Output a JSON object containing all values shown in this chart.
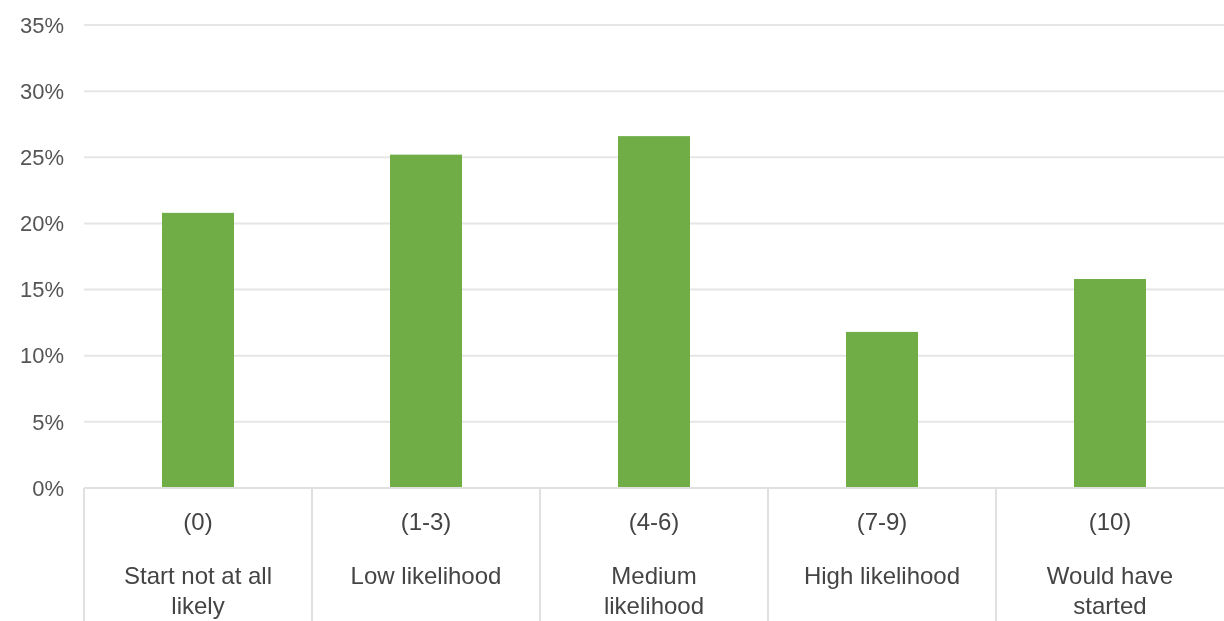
{
  "chart_data": {
    "type": "bar",
    "categories": [
      "(0)\nStart not at all likely",
      "(1-3)\nLow likelihood",
      "(4-6)\nMedium likelihood",
      "(7-9)\nHigh likelihood",
      "(10)\nWould have started"
    ],
    "values": [
      20.8,
      25.2,
      26.6,
      11.8,
      15.8
    ],
    "color": "#70ad47",
    "ylim": [
      0,
      35
    ],
    "yticks": [
      {
        "value": 0,
        "label": "0%"
      },
      {
        "value": 5,
        "label": "5%"
      },
      {
        "value": 10,
        "label": "10%"
      },
      {
        "value": 15,
        "label": "15%"
      },
      {
        "value": 20,
        "label": "20%"
      },
      {
        "value": 25,
        "label": "25%"
      },
      {
        "value": 30,
        "label": "30%"
      },
      {
        "value": 35,
        "label": "35%"
      }
    ],
    "grid": "y"
  }
}
